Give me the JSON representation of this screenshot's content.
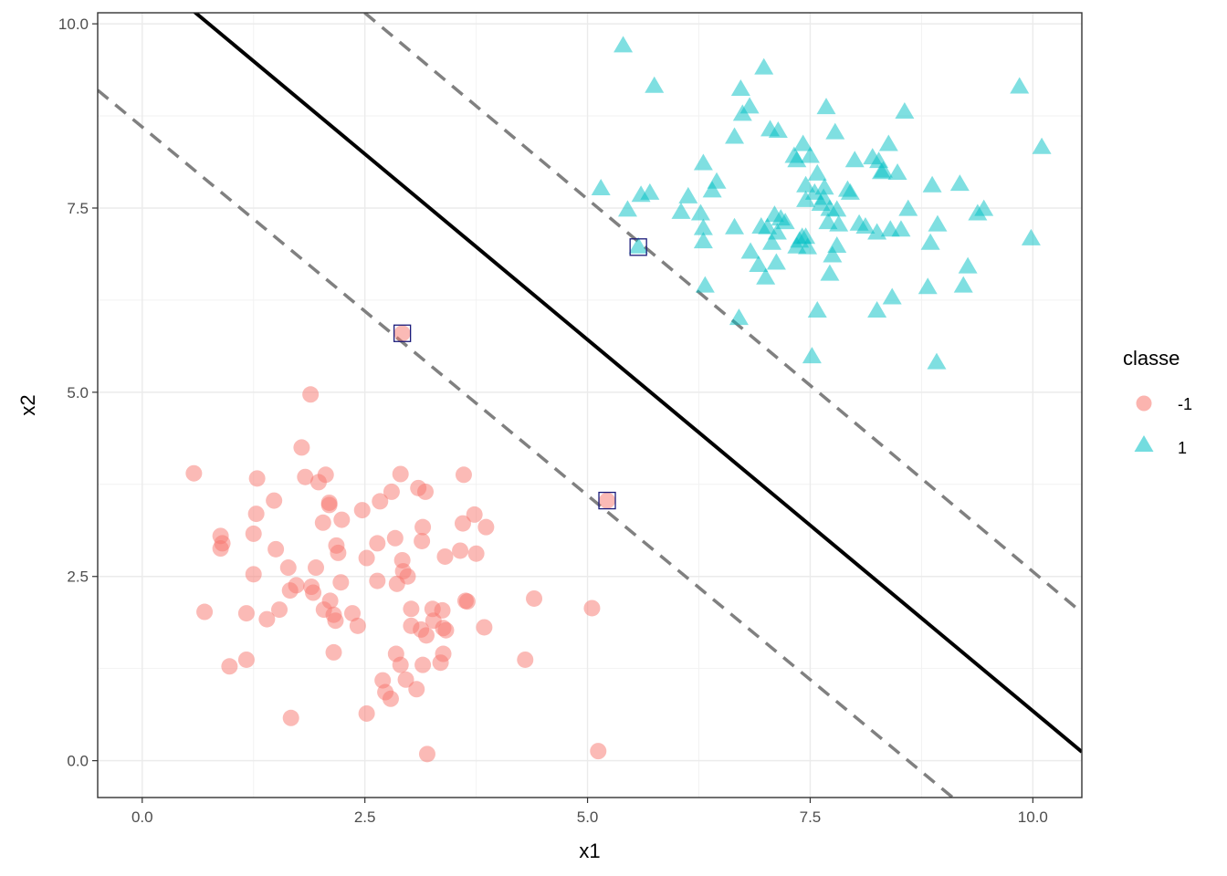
{
  "chart_data": {
    "type": "scatter",
    "title": "",
    "xlabel": "x1",
    "ylabel": "x2",
    "xlim": [
      -0.5,
      10.55
    ],
    "ylim": [
      -0.5,
      10.15
    ],
    "x_ticks": [
      0.0,
      2.5,
      5.0,
      7.5,
      10.0
    ],
    "y_ticks": [
      0.0,
      2.5,
      5.0,
      7.5,
      10.0
    ],
    "x_tick_labels": [
      "0.0",
      "2.5",
      "5.0",
      "7.5",
      "10.0"
    ],
    "y_tick_labels": [
      "0.0",
      "2.5",
      "5.0",
      "7.5",
      "10.0"
    ],
    "grid": true,
    "legend": {
      "title": "classe",
      "placement": "right",
      "entries": [
        {
          "label": "-1",
          "shape": "circle",
          "color": "#F8766D"
        },
        {
          "label": "1",
          "shape": "triangle",
          "color": "#00BFC4"
        }
      ]
    },
    "series": [
      {
        "name": "-1",
        "shape": "circle",
        "color": "#F8766D",
        "points": [
          [
            0.58,
            3.9
          ],
          [
            0.7,
            2.02
          ],
          [
            0.88,
            3.05
          ],
          [
            0.88,
            2.88
          ],
          [
            0.9,
            2.95
          ],
          [
            0.98,
            1.28
          ],
          [
            1.17,
            2.0
          ],
          [
            1.17,
            1.37
          ],
          [
            1.25,
            3.08
          ],
          [
            1.25,
            2.53
          ],
          [
            1.29,
            3.83
          ],
          [
            1.28,
            3.35
          ],
          [
            1.4,
            1.92
          ],
          [
            1.48,
            3.53
          ],
          [
            1.5,
            2.87
          ],
          [
            1.54,
            2.05
          ],
          [
            1.64,
            2.62
          ],
          [
            1.66,
            2.31
          ],
          [
            1.67,
            0.58
          ],
          [
            1.73,
            2.38
          ],
          [
            1.79,
            4.25
          ],
          [
            1.83,
            3.85
          ],
          [
            1.89,
            4.97
          ],
          [
            1.9,
            2.36
          ],
          [
            1.92,
            2.28
          ],
          [
            1.95,
            2.62
          ],
          [
            1.98,
            3.78
          ],
          [
            2.04,
            2.05
          ],
          [
            2.03,
            3.23
          ],
          [
            2.06,
            3.88
          ],
          [
            2.1,
            3.5
          ],
          [
            2.1,
            3.47
          ],
          [
            2.11,
            2.17
          ],
          [
            2.15,
            1.47
          ],
          [
            2.15,
            1.98
          ],
          [
            2.17,
            1.9
          ],
          [
            2.18,
            2.92
          ],
          [
            2.2,
            2.82
          ],
          [
            2.23,
            2.42
          ],
          [
            2.24,
            3.27
          ],
          [
            2.36,
            2.0
          ],
          [
            2.42,
            1.83
          ],
          [
            2.47,
            3.4
          ],
          [
            2.52,
            2.75
          ],
          [
            2.52,
            0.64
          ],
          [
            2.64,
            2.95
          ],
          [
            2.64,
            2.44
          ],
          [
            2.67,
            3.52
          ],
          [
            2.7,
            1.09
          ],
          [
            2.73,
            0.93
          ],
          [
            2.79,
            0.84
          ],
          [
            2.8,
            3.65
          ],
          [
            2.84,
            3.02
          ],
          [
            2.85,
            1.45
          ],
          [
            2.86,
            2.4
          ],
          [
            2.9,
            1.3
          ],
          [
            2.9,
            3.89
          ],
          [
            2.92,
            2.72
          ],
          [
            2.93,
            2.57
          ],
          [
            2.96,
            1.1
          ],
          [
            2.98,
            2.5
          ],
          [
            3.02,
            2.06
          ],
          [
            3.02,
            1.83
          ],
          [
            3.08,
            0.97
          ],
          [
            3.1,
            3.7
          ],
          [
            3.13,
            1.78
          ],
          [
            3.14,
            2.98
          ],
          [
            3.15,
            3.17
          ],
          [
            3.15,
            1.3
          ],
          [
            3.18,
            3.65
          ],
          [
            3.19,
            1.7
          ],
          [
            3.2,
            0.09
          ],
          [
            3.26,
            2.06
          ],
          [
            3.27,
            1.9
          ],
          [
            3.35,
            1.33
          ],
          [
            3.37,
            2.04
          ],
          [
            3.38,
            1.45
          ],
          [
            3.38,
            1.8
          ],
          [
            3.4,
            2.77
          ],
          [
            3.41,
            1.77
          ],
          [
            3.57,
            2.85
          ],
          [
            3.6,
            3.22
          ],
          [
            3.61,
            3.88
          ],
          [
            3.63,
            2.17
          ],
          [
            3.65,
            2.16
          ],
          [
            3.73,
            3.34
          ],
          [
            3.75,
            2.81
          ],
          [
            3.84,
            1.81
          ],
          [
            3.86,
            3.17
          ],
          [
            4.3,
            1.37
          ],
          [
            4.4,
            2.2
          ],
          [
            5.05,
            2.07
          ],
          [
            5.12,
            0.13
          ],
          [
            5.22,
            3.53
          ],
          [
            2.92,
            5.8
          ]
        ]
      },
      {
        "name": "1",
        "shape": "triangle",
        "color": "#00BFC4",
        "points": [
          [
            5.4,
            9.7
          ],
          [
            5.15,
            7.76
          ],
          [
            5.45,
            7.47
          ],
          [
            5.6,
            7.67
          ],
          [
            5.7,
            7.7
          ],
          [
            5.75,
            9.15
          ],
          [
            5.57,
            6.97
          ],
          [
            6.05,
            7.44
          ],
          [
            6.13,
            7.65
          ],
          [
            6.27,
            7.42
          ],
          [
            6.3,
            7.22
          ],
          [
            6.3,
            7.04
          ],
          [
            6.3,
            8.1
          ],
          [
            6.32,
            6.44
          ],
          [
            6.4,
            7.73
          ],
          [
            6.45,
            7.85
          ],
          [
            6.65,
            7.23
          ],
          [
            6.65,
            8.46
          ],
          [
            6.72,
            9.11
          ],
          [
            6.74,
            8.77
          ],
          [
            6.7,
            6.0
          ],
          [
            6.82,
            8.87
          ],
          [
            6.83,
            6.9
          ],
          [
            6.95,
            7.24
          ],
          [
            6.92,
            6.72
          ],
          [
            6.98,
            9.4
          ],
          [
            7.0,
            6.55
          ],
          [
            7.02,
            7.23
          ],
          [
            7.05,
            8.56
          ],
          [
            7.07,
            7.02
          ],
          [
            7.1,
            7.4
          ],
          [
            7.12,
            6.75
          ],
          [
            7.14,
            8.54
          ],
          [
            7.13,
            7.16
          ],
          [
            7.17,
            7.35
          ],
          [
            7.22,
            7.3
          ],
          [
            7.35,
            6.97
          ],
          [
            7.32,
            8.2
          ],
          [
            7.35,
            8.14
          ],
          [
            7.38,
            7.05
          ],
          [
            7.41,
            7.1
          ],
          [
            7.42,
            8.36
          ],
          [
            7.45,
            7.8
          ],
          [
            7.45,
            7.6
          ],
          [
            7.45,
            7.1
          ],
          [
            7.47,
            6.96
          ],
          [
            7.5,
            8.2
          ],
          [
            7.52,
            5.48
          ],
          [
            7.55,
            7.7
          ],
          [
            7.58,
            7.96
          ],
          [
            7.62,
            7.55
          ],
          [
            7.65,
            7.63
          ],
          [
            7.66,
            7.77
          ],
          [
            7.68,
            8.86
          ],
          [
            7.7,
            7.3
          ],
          [
            7.72,
            7.48
          ],
          [
            7.75,
            6.85
          ],
          [
            7.78,
            8.52
          ],
          [
            7.8,
            7.47
          ],
          [
            7.82,
            7.27
          ],
          [
            7.8,
            6.98
          ],
          [
            7.72,
            6.6
          ],
          [
            7.58,
            6.1
          ],
          [
            7.92,
            7.74
          ],
          [
            7.95,
            7.7
          ],
          [
            8.0,
            8.14
          ],
          [
            8.05,
            7.28
          ],
          [
            8.12,
            7.24
          ],
          [
            8.2,
            8.18
          ],
          [
            8.25,
            7.16
          ],
          [
            8.27,
            8.13
          ],
          [
            8.3,
            7.98
          ],
          [
            8.32,
            8.0
          ],
          [
            8.25,
            6.1
          ],
          [
            8.38,
            8.36
          ],
          [
            8.4,
            7.2
          ],
          [
            8.42,
            6.28
          ],
          [
            8.48,
            7.97
          ],
          [
            8.52,
            7.2
          ],
          [
            8.56,
            8.8
          ],
          [
            8.6,
            7.48
          ],
          [
            8.82,
            6.42
          ],
          [
            8.85,
            7.02
          ],
          [
            8.87,
            7.8
          ],
          [
            8.93,
            7.27
          ],
          [
            8.92,
            5.4
          ],
          [
            9.18,
            7.82
          ],
          [
            9.22,
            6.44
          ],
          [
            9.27,
            6.7
          ],
          [
            9.38,
            7.42
          ],
          [
            9.45,
            7.48
          ],
          [
            9.85,
            9.14
          ],
          [
            9.98,
            7.08
          ],
          [
            10.1,
            8.32
          ]
        ]
      }
    ],
    "support_vectors": [
      [
        2.92,
        5.8
      ],
      [
        5.22,
        3.53
      ],
      [
        5.57,
        6.97
      ]
    ],
    "lines": [
      {
        "name": "decision-boundary",
        "style": "solid",
        "color": "#000000",
        "x": [
          0.4,
          10.55
        ],
        "y": [
          10.35,
          0.12
        ]
      },
      {
        "name": "margin-upper",
        "style": "dashed",
        "color": "#808080",
        "x": [
          2.3,
          10.55
        ],
        "y": [
          10.35,
          2.01
        ]
      },
      {
        "name": "margin-lower",
        "style": "dashed",
        "color": "#808080",
        "x": [
          -0.5,
          9.4
        ],
        "y": [
          9.1,
          -0.8
        ]
      }
    ]
  }
}
